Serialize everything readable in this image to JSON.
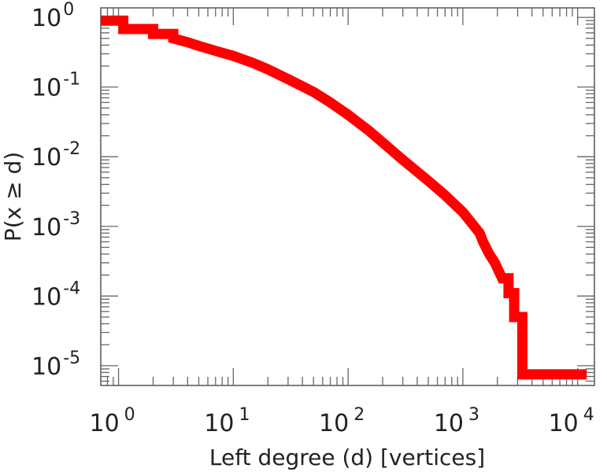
{
  "chart_data": {
    "type": "line",
    "step": true,
    "xscale": "log",
    "yscale": "log",
    "xlabel": "Left degree (d) [vertices]",
    "ylabel": "P(x ≥ d)",
    "xlim": [
      0.7,
      14000
    ],
    "ylim": [
      5.2e-06,
      1.37
    ],
    "xticks": [
      {
        "value": 1,
        "base": "10",
        "exp": "0"
      },
      {
        "value": 10,
        "base": "10",
        "exp": "1"
      },
      {
        "value": 100,
        "base": "10",
        "exp": "2"
      },
      {
        "value": 1000,
        "base": "10",
        "exp": "3"
      },
      {
        "value": 10000,
        "base": "10",
        "exp": "4"
      }
    ],
    "yticks": [
      {
        "value": 1,
        "base": "10",
        "exp": "0"
      },
      {
        "value": 0.1,
        "base": "10",
        "exp": "-1"
      },
      {
        "value": 0.01,
        "base": "10",
        "exp": "-2"
      },
      {
        "value": 0.001,
        "base": "10",
        "exp": "-3"
      },
      {
        "value": 0.0001,
        "base": "10",
        "exp": "-4"
      },
      {
        "value": 1e-05,
        "base": "10",
        "exp": "-5"
      }
    ],
    "grid": false,
    "series": [
      {
        "color": "#ff0000",
        "x": [
          0.7,
          1.1,
          1.1,
          2,
          2,
          3,
          3,
          4,
          5,
          7,
          10,
          15,
          20,
          30,
          50,
          70,
          100,
          150,
          200,
          300,
          500,
          700,
          1000,
          1200,
          1400,
          1500,
          1700,
          1900,
          2000,
          2200,
          2500,
          2500,
          2800,
          2800,
          3300,
          3300,
          12000
        ],
        "y": [
          0.9,
          0.9,
          0.68,
          0.68,
          0.58,
          0.58,
          0.5,
          0.44,
          0.39,
          0.33,
          0.28,
          0.22,
          0.18,
          0.13,
          0.085,
          0.06,
          0.04,
          0.024,
          0.016,
          0.009,
          0.0045,
          0.0028,
          0.0016,
          0.0011,
          0.0008,
          0.0006,
          0.0004,
          0.0003,
          0.00025,
          0.00018,
          0.00018,
          0.00011,
          0.00011,
          5e-05,
          5e-05,
          7.5e-06,
          7.5e-06
        ]
      }
    ]
  }
}
